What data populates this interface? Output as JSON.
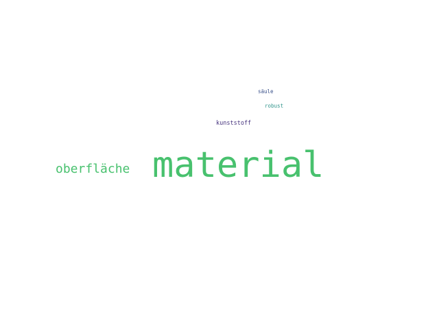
{
  "word_cloud": {
    "words": [
      {
        "text": "material",
        "color": "#48c16e"
      },
      {
        "text": "oberfläche",
        "color": "#48c16e"
      },
      {
        "text": "kunststoff",
        "color": "#46337e"
      },
      {
        "text": "säule",
        "color": "#3b528b"
      },
      {
        "text": "robust",
        "color": "#31958c"
      }
    ]
  }
}
